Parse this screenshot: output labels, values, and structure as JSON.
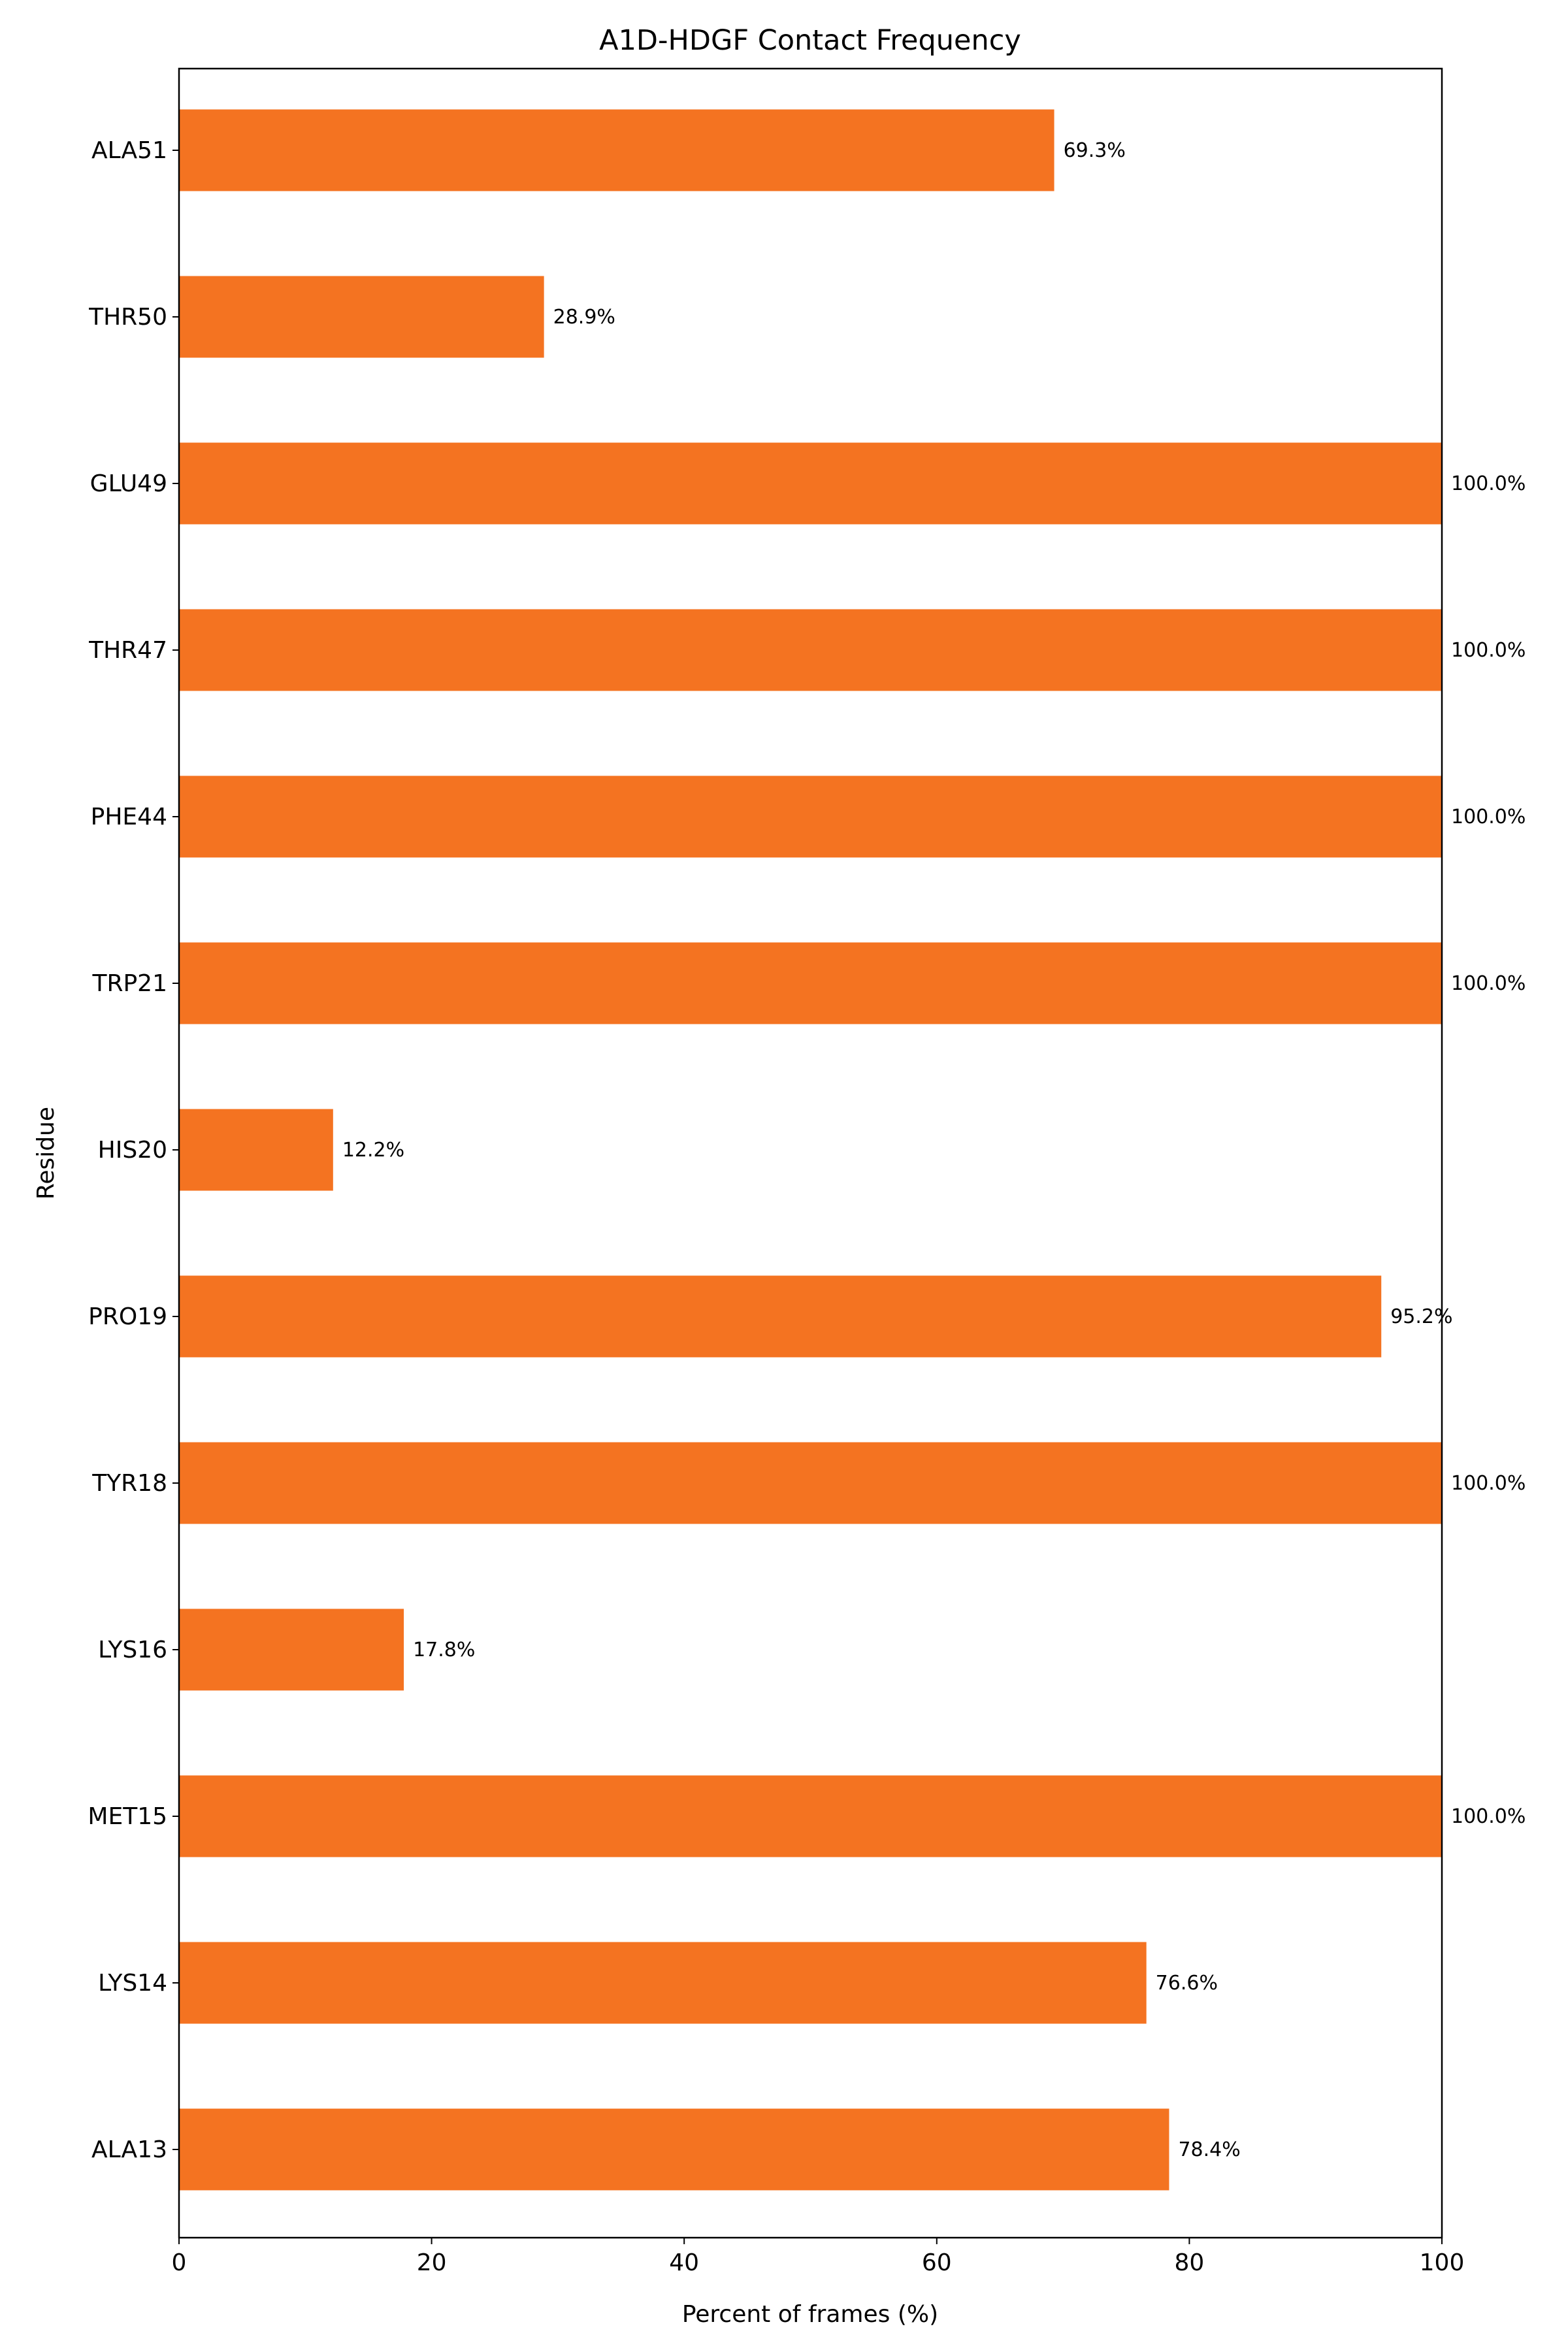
{
  "chart_data": {
    "type": "bar",
    "orientation": "horizontal",
    "title": "A1D-HDGF Contact Frequency",
    "xlabel": "Percent of frames (%)",
    "ylabel": "Residue",
    "xlim": [
      0,
      100
    ],
    "xticks": [
      0,
      20,
      40,
      60,
      80,
      100
    ],
    "grid": false,
    "bar_color": "#f47321",
    "categories": [
      "ALA13",
      "LYS14",
      "MET15",
      "LYS16",
      "TYR18",
      "PRO19",
      "HIS20",
      "TRP21",
      "PHE44",
      "THR47",
      "GLU49",
      "THR50",
      "ALA51"
    ],
    "values": [
      78.4,
      76.6,
      100.0,
      17.8,
      100.0,
      95.2,
      12.2,
      100.0,
      100.0,
      100.0,
      100.0,
      28.9,
      69.3
    ],
    "value_labels": [
      "78.4%",
      "76.6%",
      "100.0%",
      "17.8%",
      "100.0%",
      "95.2%",
      "12.2%",
      "100.0%",
      "100.0%",
      "100.0%",
      "100.0%",
      "28.9%",
      "69.3%"
    ]
  }
}
